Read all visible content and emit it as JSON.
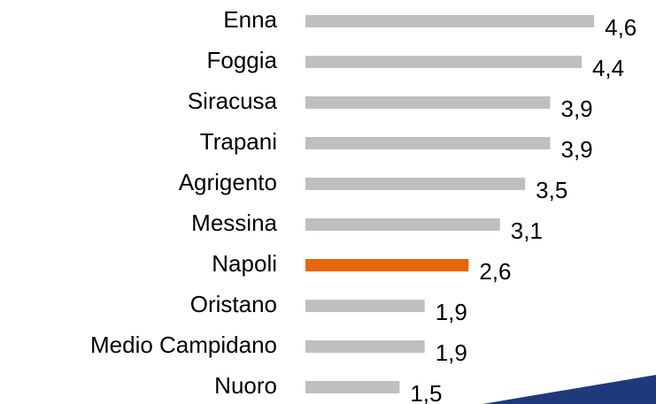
{
  "chart_data": {
    "type": "bar",
    "orientation": "horizontal",
    "categories": [
      "Enna",
      "Foggia",
      "Siracusa",
      "Trapani",
      "Agrigento",
      "Messina",
      "Napoli",
      "Oristano",
      "Medio Campidano",
      "Nuoro"
    ],
    "values": [
      4.6,
      4.4,
      3.9,
      3.9,
      3.5,
      3.1,
      2.6,
      1.9,
      1.9,
      1.5
    ],
    "value_labels": [
      "4,6",
      "4,4",
      "3,9",
      "3,9",
      "3,5",
      "3,1",
      "2,6",
      "1,9",
      "1,9",
      "1,5"
    ],
    "colors": [
      "#bfbfbf",
      "#bfbfbf",
      "#bfbfbf",
      "#bfbfbf",
      "#bfbfbf",
      "#bfbfbf",
      "#e8650a",
      "#bfbfbf",
      "#bfbfbf",
      "#bfbfbf"
    ]
  }
}
